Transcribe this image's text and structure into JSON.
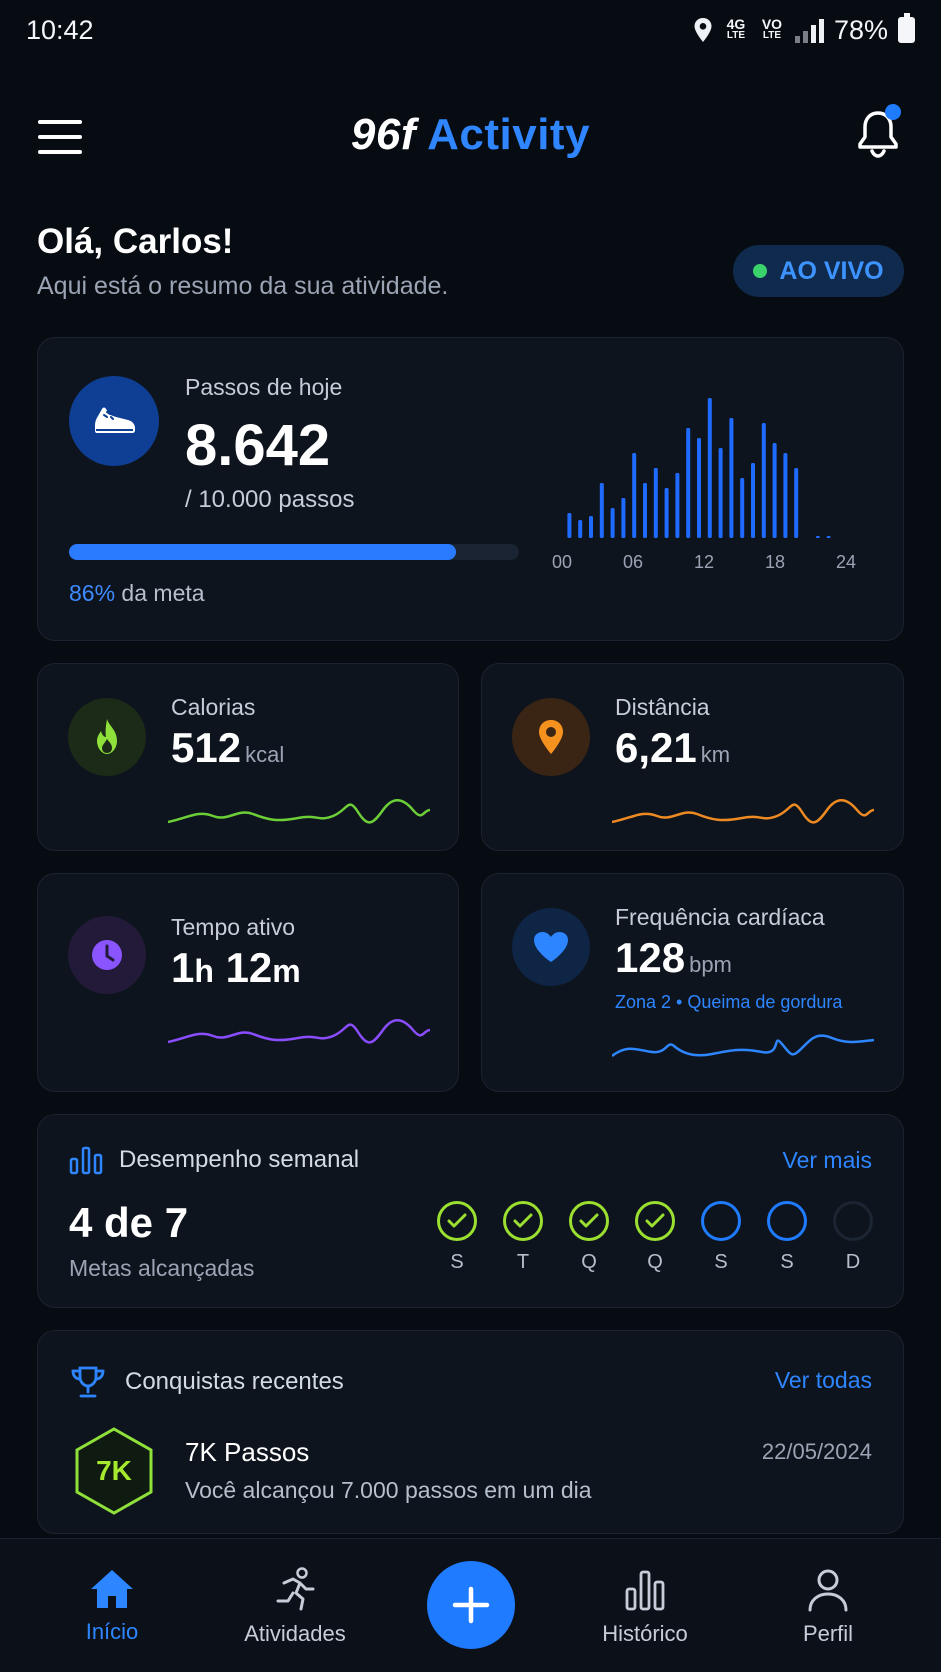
{
  "status_bar": {
    "time": "10:42",
    "battery": "78%",
    "net_top": "4G",
    "net_bottom": "LTE"
  },
  "header": {
    "brand": "96f",
    "title": "Activity"
  },
  "greeting": {
    "title": "Olá, Carlos!",
    "subtitle": "Aqui está o resumo da sua atividade."
  },
  "live_badge": "AO VIVO",
  "steps": {
    "label": "Passos de hoje",
    "value": "8.642",
    "goal": "/ 10.000 passos",
    "progress": 0.86,
    "meta_pct": "86%",
    "meta_suffix": " da meta",
    "chart_ticks": [
      "00",
      "06",
      "12",
      "18",
      "24"
    ],
    "chart_color": "#1f6bff"
  },
  "calories": {
    "label": "Calorias",
    "value": "512",
    "unit": "kcal",
    "color": "#7ad13a",
    "icon": "flame-icon"
  },
  "distance": {
    "label": "Distância",
    "value": "6,21",
    "unit": "km",
    "color": "#f28a1d",
    "icon": "location-pin-icon"
  },
  "active_time": {
    "label": "Tempo ativo",
    "hours": "1",
    "h_unit": "h",
    "minutes": "12",
    "m_unit": "m",
    "color": "#8a4dff",
    "icon": "clock-icon"
  },
  "heart_rate": {
    "label": "Frequência cardíaca",
    "value": "128",
    "unit": "bpm",
    "zone": "Zona 2 • Queima de gordura",
    "color": "#2d86ff",
    "icon": "heart-icon"
  },
  "weekly": {
    "title": "Desempenho semanal",
    "see_more": "Ver mais",
    "count": "4 de 7",
    "subtitle": "Metas alcançadas",
    "days": [
      {
        "label": "S",
        "state": "done"
      },
      {
        "label": "T",
        "state": "done"
      },
      {
        "label": "Q",
        "state": "done"
      },
      {
        "label": "Q",
        "state": "done"
      },
      {
        "label": "S",
        "state": "pending"
      },
      {
        "label": "S",
        "state": "pending"
      },
      {
        "label": "D",
        "state": "off"
      }
    ]
  },
  "achievements": {
    "title": "Conquistas recentes",
    "see_all": "Ver todas",
    "badge": "7K",
    "item_title": "7K Passos",
    "item_desc": "Você alcançou 7.000 passos em um dia",
    "date": "22/05/2024"
  },
  "nav": {
    "home": "Início",
    "activities": "Atividades",
    "history": "Histórico",
    "profile": "Perfil"
  },
  "colors": {
    "accent": "#1f7bff",
    "background": "#070b12",
    "card": "#0e141d"
  }
}
